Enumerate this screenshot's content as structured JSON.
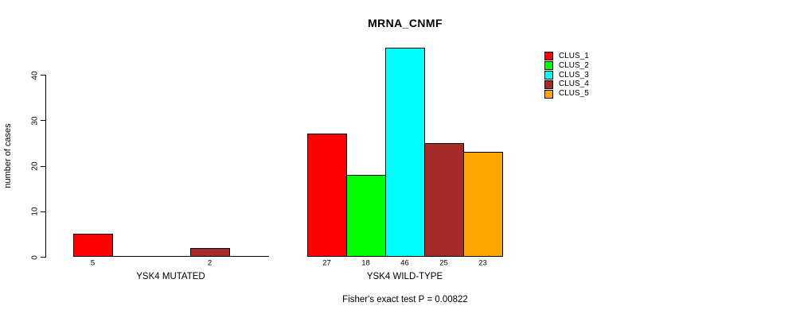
{
  "chart_data": {
    "type": "bar",
    "title": "MRNA_CNMF",
    "ylabel": "number of cases",
    "yticks": [
      0,
      10,
      20,
      30,
      40
    ],
    "ylim": [
      0,
      46
    ],
    "grid": false,
    "legend_position": "top-right",
    "series": [
      "CLUS_1",
      "CLUS_2",
      "CLUS_3",
      "CLUS_4",
      "CLUS_5"
    ],
    "series_colors": [
      "#ff0000",
      "#00ff00",
      "#00ffff",
      "#a52a2a",
      "#ffa500"
    ],
    "groups": [
      {
        "label": "YSK4 MUTATED",
        "values": [
          5,
          0,
          0,
          2,
          0
        ],
        "bar_labels": [
          "5",
          "",
          "",
          "2",
          ""
        ]
      },
      {
        "label": "YSK4 WILD-TYPE",
        "values": [
          27,
          18,
          46,
          25,
          23
        ],
        "bar_labels": [
          "27",
          "18",
          "46",
          "25",
          "23"
        ]
      }
    ],
    "annotation": "Fisher's exact test P = 0.00822"
  },
  "legend": {
    "items": [
      {
        "label": "CLUS_1",
        "color": "#ff0000"
      },
      {
        "label": "CLUS_2",
        "color": "#00ff00"
      },
      {
        "label": "CLUS_3",
        "color": "#00ffff"
      },
      {
        "label": "CLUS_4",
        "color": "#a52a2a"
      },
      {
        "label": "CLUS_5",
        "color": "#ffa500"
      }
    ]
  }
}
